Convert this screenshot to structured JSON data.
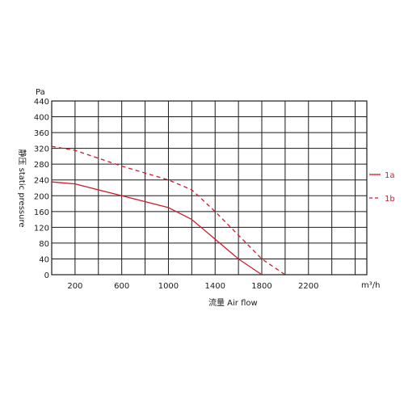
{
  "chart_data": {
    "type": "line",
    "y_unit": "Pa",
    "x_unit": "m³/h",
    "ylabel": "静压 static pressure",
    "xlabel": "流量 Air flow",
    "grid": true,
    "x_ticks": [
      200,
      600,
      1000,
      1400,
      1800,
      2200
    ],
    "y_ticks": [
      0,
      40,
      80,
      120,
      160,
      200,
      240,
      280,
      320,
      360,
      400,
      440
    ],
    "xlim": [
      0,
      2700
    ],
    "ylim": [
      0,
      440
    ],
    "legend_position": "right",
    "series": [
      {
        "name": "1a",
        "style": "solid",
        "color": "#d01a2a",
        "points": [
          [
            0,
            235
          ],
          [
            200,
            230
          ],
          [
            600,
            200
          ],
          [
            1000,
            170
          ],
          [
            1200,
            140
          ],
          [
            1400,
            90
          ],
          [
            1600,
            40
          ],
          [
            1800,
            0
          ]
        ]
      },
      {
        "name": "1b",
        "style": "dashed",
        "color": "#d01a2a",
        "points": [
          [
            0,
            325
          ],
          [
            200,
            315
          ],
          [
            600,
            275
          ],
          [
            1000,
            240
          ],
          [
            1200,
            215
          ],
          [
            1400,
            160
          ],
          [
            1600,
            100
          ],
          [
            1800,
            40
          ],
          [
            2000,
            0
          ]
        ]
      }
    ]
  }
}
